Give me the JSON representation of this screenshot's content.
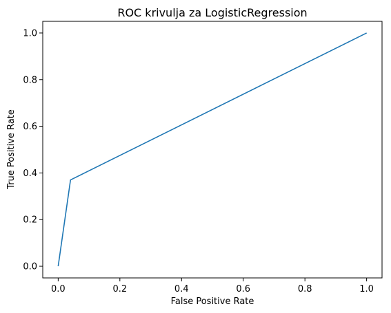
{
  "chart_data": {
    "type": "line",
    "title": "ROC krivulja za LogisticRegression",
    "xlabel": "False Positive Rate",
    "ylabel": "True Positive Rate",
    "xlim": [
      -0.05,
      1.05
    ],
    "ylim": [
      -0.05,
      1.05
    ],
    "xticks": [
      "0.0",
      "0.2",
      "0.4",
      "0.6",
      "0.8",
      "1.0"
    ],
    "yticks": [
      "0.0",
      "0.2",
      "0.4",
      "0.6",
      "0.8",
      "1.0"
    ],
    "grid": false,
    "series": [
      {
        "color": "#1f77b4",
        "x": [
          0.0,
          0.04,
          1.0
        ],
        "y": [
          0.0,
          0.37,
          1.0
        ]
      }
    ]
  }
}
